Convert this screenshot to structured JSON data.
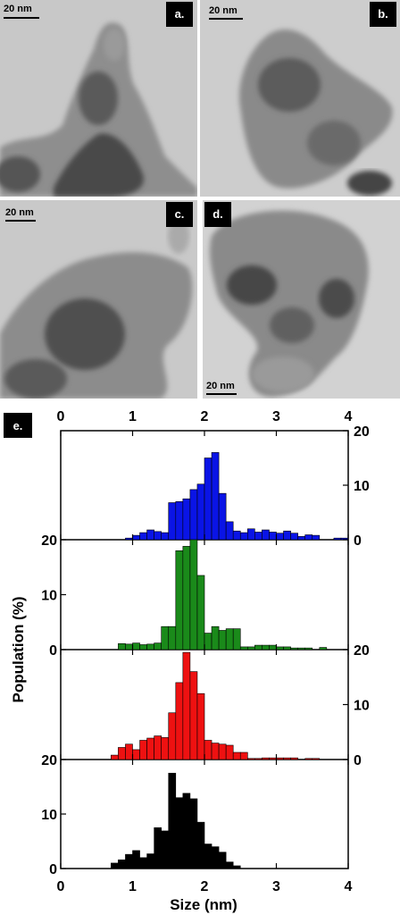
{
  "figure": {
    "panels": [
      {
        "id": "a",
        "label": "a.",
        "scale_bar": "20 nm"
      },
      {
        "id": "b",
        "label": "b.",
        "scale_bar": "20 nm"
      },
      {
        "id": "c",
        "label": "c.",
        "scale_bar": "20 nm"
      },
      {
        "id": "d",
        "label": "d.",
        "scale_bar": "20 nm"
      }
    ],
    "panel_e_label": "e."
  },
  "colors": {
    "blue": "#0a14e6",
    "green": "#1a8a1a",
    "red": "#ee1111",
    "black": "#000000"
  },
  "chart_data": {
    "type": "bar",
    "panel": "e.",
    "xlabel": "Size (nm)",
    "ylabel": "Population (%)",
    "xlim": [
      0,
      4
    ],
    "ylim": [
      0,
      20
    ],
    "x_ticks": [
      "0",
      "1",
      "2",
      "3",
      "4"
    ],
    "y_ticks": [
      "0",
      "10",
      "20"
    ],
    "bin_width": 0.1,
    "series": [
      {
        "color": "blue",
        "x": [
          0.95,
          1.05,
          1.15,
          1.25,
          1.35,
          1.45,
          1.55,
          1.65,
          1.75,
          1.85,
          1.95,
          2.05,
          2.15,
          2.25,
          2.35,
          2.45,
          2.55,
          2.65,
          2.75,
          2.85,
          2.95,
          3.05,
          3.15,
          3.25,
          3.35,
          3.45,
          3.55,
          3.85,
          3.95
        ],
        "values": [
          0.3,
          0.8,
          1.3,
          1.8,
          1.5,
          1.3,
          6.8,
          7.0,
          7.5,
          9.2,
          10.2,
          15.0,
          16.0,
          8.5,
          3.3,
          1.6,
          1.3,
          2.0,
          1.4,
          1.8,
          1.4,
          1.2,
          1.6,
          1.2,
          0.6,
          0.9,
          0.8,
          0.3,
          0.3
        ]
      },
      {
        "color": "green",
        "x": [
          0.85,
          0.95,
          1.05,
          1.15,
          1.25,
          1.35,
          1.45,
          1.55,
          1.65,
          1.75,
          1.85,
          1.95,
          2.05,
          2.15,
          2.25,
          2.35,
          2.45,
          2.55,
          2.65,
          2.75,
          2.85,
          2.95,
          3.05,
          3.15,
          3.25,
          3.35,
          3.45,
          3.65
        ],
        "values": [
          1.1,
          1.0,
          1.2,
          0.9,
          1.0,
          1.2,
          4.2,
          4.2,
          18.0,
          18.8,
          20.0,
          13.5,
          3.0,
          4.2,
          3.5,
          3.8,
          3.8,
          0.5,
          0.5,
          0.8,
          0.8,
          0.8,
          0.5,
          0.5,
          0.3,
          0.3,
          0.3,
          0.4
        ]
      },
      {
        "color": "red",
        "x": [
          0.75,
          0.85,
          0.95,
          1.05,
          1.15,
          1.25,
          1.35,
          1.45,
          1.55,
          1.65,
          1.75,
          1.85,
          1.95,
          2.05,
          2.15,
          2.25,
          2.35,
          2.45,
          2.55,
          2.65,
          2.75,
          2.85,
          2.95,
          3.05,
          3.15,
          3.25,
          3.45,
          3.55
        ],
        "values": [
          0.8,
          2.2,
          2.8,
          1.8,
          3.5,
          3.9,
          4.3,
          4.0,
          8.5,
          14.0,
          19.5,
          16.0,
          12.0,
          3.5,
          3.0,
          2.8,
          2.6,
          1.3,
          1.3,
          0.2,
          0.2,
          0.3,
          0.3,
          0.3,
          0.3,
          0.3,
          0.2,
          0.2
        ]
      },
      {
        "color": "black",
        "x": [
          0.75,
          0.85,
          0.95,
          1.05,
          1.15,
          1.25,
          1.35,
          1.45,
          1.55,
          1.65,
          1.75,
          1.85,
          1.95,
          2.05,
          2.15,
          2.25,
          2.35,
          2.45
        ],
        "values": [
          1.0,
          1.6,
          2.6,
          3.3,
          2.0,
          2.7,
          7.5,
          6.9,
          17.5,
          13.0,
          13.8,
          12.8,
          8.5,
          4.5,
          4.0,
          3.0,
          1.2,
          0.5
        ]
      }
    ]
  }
}
